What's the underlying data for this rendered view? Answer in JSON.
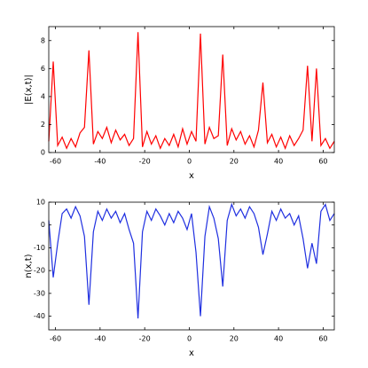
{
  "chart_data": [
    {
      "type": "line",
      "xlabel": "x",
      "ylabel": "|E(x,t)|",
      "color": "#ff0000",
      "x": [
        -63,
        -61,
        -59,
        -57,
        -55,
        -53,
        -51,
        -49,
        -47,
        -45,
        -43,
        -41,
        -39,
        -37,
        -35,
        -33,
        -31,
        -29,
        -27,
        -25,
        -23,
        -21,
        -19,
        -17,
        -15,
        -13,
        -11,
        -9,
        -7,
        -5,
        -3,
        -1,
        1,
        3,
        5,
        7,
        9,
        11,
        13,
        15,
        17,
        19,
        21,
        23,
        25,
        27,
        29,
        31,
        33,
        35,
        37,
        39,
        41,
        43,
        45,
        47,
        49,
        51,
        53,
        55,
        57,
        59,
        61,
        63,
        65
      ],
      "values": [
        0.8,
        6.5,
        0.5,
        1.1,
        0.3,
        1.0,
        0.4,
        1.4,
        1.8,
        7.3,
        0.6,
        1.5,
        1.0,
        1.8,
        0.7,
        1.6,
        0.9,
        1.3,
        0.5,
        1.0,
        8.6,
        0.4,
        1.5,
        0.6,
        1.2,
        0.3,
        1.0,
        0.5,
        1.3,
        0.4,
        1.7,
        0.6,
        1.5,
        0.8,
        8.5,
        0.6,
        1.8,
        1.0,
        1.2,
        7.0,
        0.5,
        1.7,
        0.9,
        1.5,
        0.6,
        1.2,
        0.4,
        1.6,
        5.0,
        0.7,
        1.3,
        0.4,
        1.1,
        0.3,
        1.2,
        0.5,
        1.0,
        1.6,
        6.2,
        0.8,
        6.0,
        0.5,
        1.0,
        0.3,
        0.8
      ],
      "xlim": [
        -63,
        65
      ],
      "xticks": [
        -60,
        -40,
        -20,
        0,
        20,
        40,
        60
      ],
      "ylim": [
        0,
        9
      ],
      "yticks": [
        0,
        2,
        4,
        6,
        8
      ]
    },
    {
      "type": "line",
      "xlabel": "x",
      "ylabel": "n(x,t)",
      "color": "#1f2fe0",
      "x": [
        -63,
        -61,
        -59,
        -57,
        -55,
        -53,
        -51,
        -49,
        -47,
        -45,
        -43,
        -41,
        -39,
        -37,
        -35,
        -33,
        -31,
        -29,
        -27,
        -25,
        -23,
        -21,
        -19,
        -17,
        -15,
        -13,
        -11,
        -9,
        -7,
        -5,
        -3,
        -1,
        1,
        3,
        5,
        7,
        9,
        11,
        13,
        15,
        17,
        19,
        21,
        23,
        25,
        27,
        29,
        31,
        33,
        35,
        37,
        39,
        41,
        43,
        45,
        47,
        49,
        51,
        53,
        55,
        57,
        59,
        61,
        63,
        65
      ],
      "values": [
        2,
        -23,
        -8,
        5,
        7,
        3,
        8,
        4,
        -5,
        -35,
        -3,
        6,
        2,
        7,
        3,
        6,
        1,
        5,
        -2,
        -8,
        -41,
        -3,
        6,
        2,
        7,
        4,
        0,
        5,
        1,
        6,
        3,
        -2,
        5,
        -12,
        -40,
        -5,
        8,
        3,
        -6,
        -27,
        2,
        9,
        4,
        7,
        3,
        8,
        5,
        -1,
        -13,
        -4,
        6,
        2,
        7,
        3,
        5,
        0,
        4,
        -6,
        -19,
        -8,
        -17,
        6,
        9,
        2,
        5
      ],
      "xlim": [
        -63,
        65
      ],
      "xticks": [
        -60,
        -40,
        -20,
        0,
        20,
        40,
        60
      ],
      "ylim": [
        -46,
        10
      ],
      "yticks": [
        -40,
        -30,
        -20,
        -10,
        0,
        10
      ]
    }
  ]
}
